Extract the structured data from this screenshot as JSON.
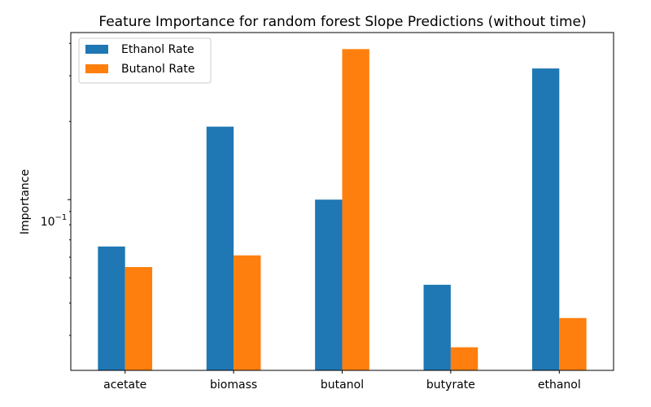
{
  "chart_data": {
    "type": "bar",
    "title": "Feature Importance for random forest Slope Predictions (without time)",
    "xlabel": "",
    "ylabel": "Importance",
    "y_scale": "log",
    "ylim": [
      0.022,
      0.44
    ],
    "ytick_label": {
      "base": "10",
      "exponent": "−1",
      "value": 0.1
    },
    "categories": [
      "acetate",
      "biomass",
      "butanol",
      "butyrate",
      "ethanol"
    ],
    "series": [
      {
        "name": "Ethanol Rate",
        "color": "#1f77b4",
        "values": [
          0.066,
          0.191,
          0.1,
          0.047,
          0.32
        ]
      },
      {
        "name": "Butanol Rate",
        "color": "#ff7f0e",
        "values": [
          0.055,
          0.061,
          0.38,
          0.027,
          0.035
        ]
      }
    ],
    "legend_position": "top-left",
    "grid": false
  }
}
